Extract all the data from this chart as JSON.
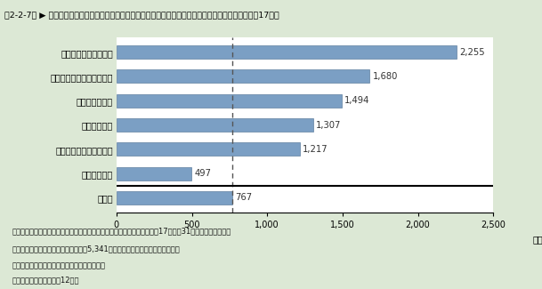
{
  "title": "第2-2-7図 ▶ 企業等における従業者１万人当たりの研究者数（学術研究機関を除く上位５業種）　（平成17年）",
  "categories": [
    "情報通信機械器具工業",
    "電子応用・電気計測器工業",
    "油脂・塗料工業",
    "精密機械工業",
    "総合化学・化学繊維工業",
    "その他の業種",
    "全業種"
  ],
  "values": [
    2255,
    1680,
    1494,
    1307,
    1217,
    497,
    767
  ],
  "bar_color": "#7b9fc4",
  "bar_edge_color": "#6080a0",
  "xlim": [
    0,
    2500
  ],
  "xticks": [
    0,
    500,
    1000,
    1500,
    2000,
    2500
  ],
  "xlabel_unit": "（人）",
  "dashed_line_x": 767,
  "background_color": "#dce8d5",
  "plot_bg_color": "#ffffff",
  "title_bg_color": "#b8ccb0",
  "note_line1": "注）１．「従業者１万人当たりの研究者数」の従業者及び研究者数は平成17年３月31日現在の値である。",
  "note_line2": "　　２．学術研究機関（１万人当たり5,341人）は、グラフ上に示していない。",
  "note_line3": "資料：総務省統計局「科学技術研究調査報告」",
  "note_line4": "（参照：付属資料３．（12））"
}
